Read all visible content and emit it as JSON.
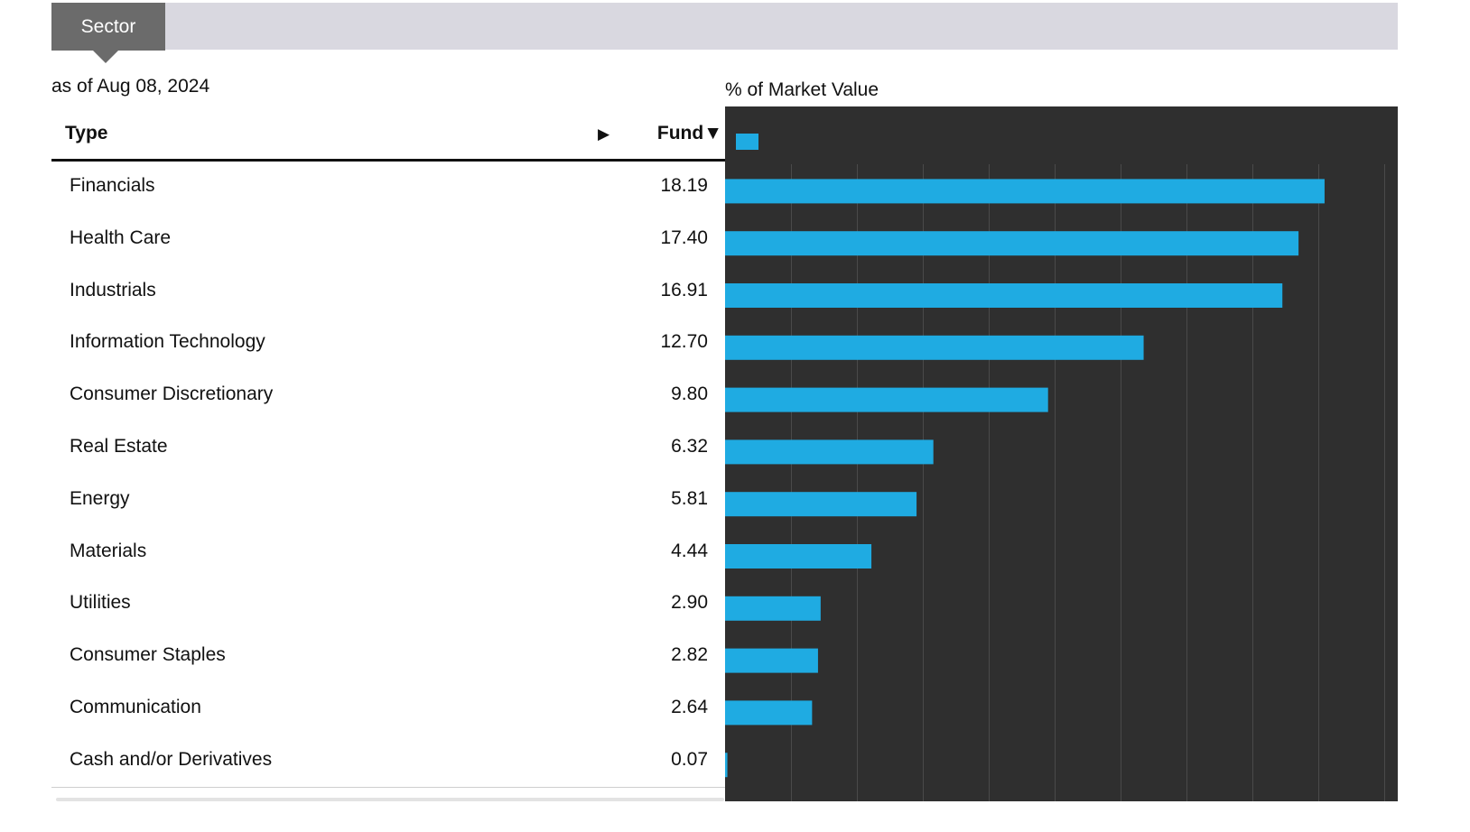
{
  "tabs": {
    "active": "Sector"
  },
  "as_of": "as of Aug 08, 2024",
  "table": {
    "header_type": "Type",
    "header_arrow": "▶",
    "header_fund": "Fund▼",
    "rows": [
      {
        "label": "Financials",
        "value": "18.19"
      },
      {
        "label": "Health Care",
        "value": "17.40"
      },
      {
        "label": "Industrials",
        "value": "16.91"
      },
      {
        "label": "Information Technology",
        "value": "12.70"
      },
      {
        "label": "Consumer Discretionary",
        "value": "9.80"
      },
      {
        "label": "Real Estate",
        "value": "6.32"
      },
      {
        "label": "Energy",
        "value": "5.81"
      },
      {
        "label": "Materials",
        "value": "4.44"
      },
      {
        "label": "Utilities",
        "value": "2.90"
      },
      {
        "label": "Consumer Staples",
        "value": "2.82"
      },
      {
        "label": "Communication",
        "value": "2.64"
      },
      {
        "label": "Cash and/or Derivatives",
        "value": "0.07"
      }
    ]
  },
  "chart_data": {
    "type": "bar",
    "orientation": "horizontal",
    "title": "% of Market Value",
    "categories": [
      "Financials",
      "Health Care",
      "Industrials",
      "Information Technology",
      "Consumer Discretionary",
      "Real Estate",
      "Energy",
      "Materials",
      "Utilities",
      "Consumer Staples",
      "Communication",
      "Cash and/or Derivatives"
    ],
    "series": [
      {
        "name": "Fund",
        "values": [
          18.19,
          17.4,
          16.91,
          12.7,
          9.8,
          6.32,
          5.81,
          4.44,
          2.9,
          2.82,
          2.64,
          0.07
        ]
      }
    ],
    "xlim": [
      0,
      20
    ],
    "grid": true,
    "legend": "top-left",
    "background": "#2f2f2f",
    "bar_color": "#1fabe2",
    "grid_color": "#4a4a4a"
  }
}
